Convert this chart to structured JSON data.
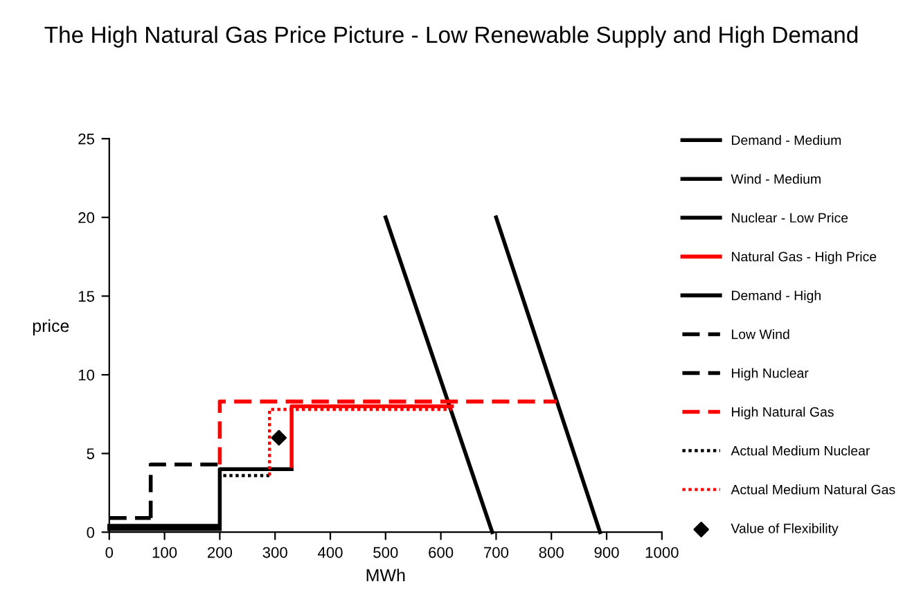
{
  "chart_data": {
    "type": "line",
    "title": "The High Natural Gas Price Picture - Low Renewable Supply and High Demand",
    "xlabel": "MWh",
    "ylabel": "price",
    "xlim": [
      0,
      1000
    ],
    "xticks": [
      0,
      100,
      200,
      300,
      400,
      500,
      600,
      700,
      800,
      900,
      1000
    ],
    "ylim": [
      0,
      25
    ],
    "yticks": [
      0,
      5,
      10,
      15,
      20,
      25
    ],
    "grid": false,
    "legend": "right",
    "marker": "none",
    "series": [
      {
        "name": "Demand - Medium",
        "color": "#000000",
        "line_style": "solid",
        "x": [
          500,
          693
        ],
        "values": [
          20,
          0
        ]
      },
      {
        "name": "Wind - Medium",
        "color": "#000000",
        "line_style": "solid",
        "x": [
          0,
          200
        ],
        "values": [
          0.2,
          0.2
        ]
      },
      {
        "name": "Nuclear - Low Price",
        "color": "#000000",
        "line_style": "solid",
        "x": [
          0,
          200,
          200,
          330
        ],
        "values": [
          0.4,
          0.4,
          4,
          4
        ]
      },
      {
        "name": "Natural Gas - High Price",
        "color": "#ff0000",
        "line_style": "solid",
        "x": [
          330,
          330,
          620
        ],
        "values": [
          4.2,
          8,
          8
        ]
      },
      {
        "name": "Demand - High",
        "color": "#000000",
        "line_style": "solid",
        "x": [
          700,
          888
        ],
        "values": [
          20,
          0
        ]
      },
      {
        "name": "Low Wind",
        "color": "#000000",
        "line_style": "dashed",
        "x": [
          0,
          75
        ],
        "values": [
          0.9,
          0.9
        ]
      },
      {
        "name": "High Nuclear",
        "color": "#000000",
        "line_style": "dashed",
        "x": [
          75,
          75,
          200
        ],
        "values": [
          0.9,
          4.3,
          4.3
        ]
      },
      {
        "name": "High Natural Gas",
        "color": "#ff0000",
        "line_style": "dashed",
        "x": [
          200,
          200,
          810
        ],
        "values": [
          4.3,
          8.3,
          8.3
        ]
      },
      {
        "name": "Actual Medium Nuclear",
        "color": "#000000",
        "line_style": "dotted",
        "x": [
          200,
          200,
          290
        ],
        "values": [
          0.3,
          3.6,
          3.6
        ]
      },
      {
        "name": "Actual Medium Natural Gas",
        "color": "#ff0000",
        "line_style": "dotted",
        "x": [
          290,
          290,
          620
        ],
        "values": [
          3.6,
          7.8,
          7.8
        ]
      },
      {
        "name": "Value of Flexibility",
        "type": "scatter",
        "marker": "diamond",
        "color": "#000000",
        "x": [
          307
        ],
        "values": [
          6
        ]
      }
    ]
  }
}
